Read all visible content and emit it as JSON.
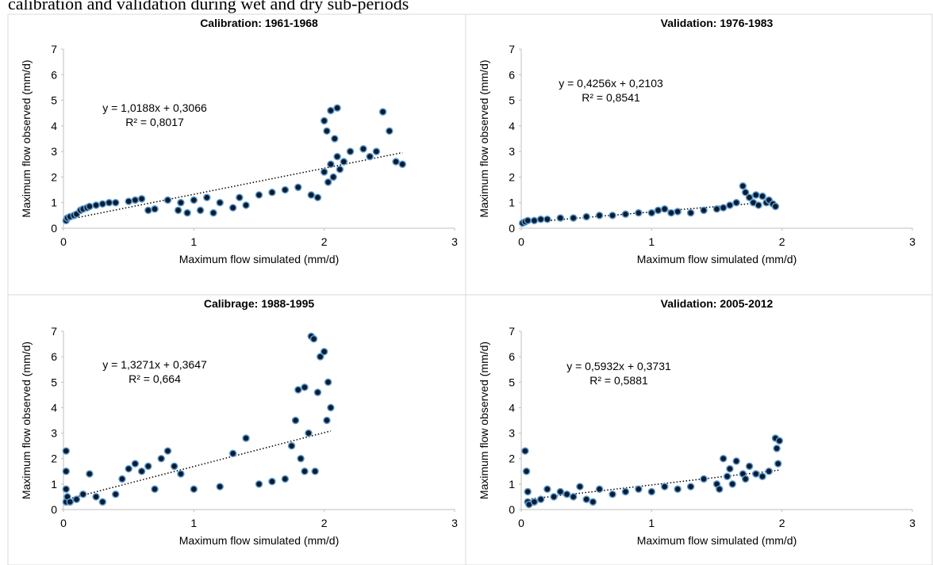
{
  "caption": "calibration and validation during wet and dry sub-periods",
  "chart_data": [
    {
      "type": "scatter",
      "title": "Calibration: 1961-1968",
      "x_label": "Maximum flow simulated (mm/d)",
      "y_label": "Maximum flow observed (mm/d)",
      "x": [
        0.02,
        0.03,
        0.05,
        0.08,
        0.1,
        0.13,
        0.15,
        0.18,
        0.2,
        0.25,
        0.3,
        0.35,
        0.4,
        0.5,
        0.55,
        0.6,
        0.65,
        0.7,
        0.8,
        0.88,
        0.9,
        0.95,
        1.0,
        1.05,
        1.1,
        1.15,
        1.2,
        1.3,
        1.35,
        1.4,
        1.5,
        1.6,
        1.7,
        1.8,
        1.9,
        1.95,
        2.0,
        2.0,
        2.02,
        2.03,
        2.05,
        2.05,
        2.07,
        2.08,
        2.1,
        2.1,
        2.12,
        2.15,
        2.2,
        2.3,
        2.35,
        2.4,
        2.45,
        2.5,
        2.55,
        2.6
      ],
      "y": [
        0.3,
        0.4,
        0.45,
        0.5,
        0.55,
        0.7,
        0.75,
        0.8,
        0.85,
        0.9,
        0.95,
        1.0,
        1.0,
        1.05,
        1.1,
        1.15,
        0.7,
        0.75,
        1.1,
        0.7,
        1.0,
        0.6,
        1.1,
        0.7,
        1.2,
        0.6,
        1.0,
        0.8,
        1.2,
        0.9,
        1.3,
        1.4,
        1.5,
        1.6,
        1.3,
        1.2,
        2.2,
        4.2,
        3.8,
        1.8,
        2.5,
        4.6,
        2.0,
        3.5,
        4.7,
        2.8,
        2.3,
        2.6,
        3.0,
        3.1,
        2.8,
        3.0,
        4.55,
        3.8,
        2.6,
        2.5
      ],
      "color": "#0d1b2a",
      "edge_color": "#5b9bd5",
      "xlim": [
        0,
        3
      ],
      "ylim": [
        0,
        7
      ],
      "xticks": [
        0,
        1,
        2,
        3
      ],
      "yticks": [
        0,
        1,
        2,
        3,
        4,
        5,
        6,
        7
      ],
      "trendline": {
        "slope": 1.0188,
        "intercept": 0.3066,
        "equation": "y = 1,0188x + 0,3066",
        "r_squared": "R² = 0,8017"
      }
    },
    {
      "type": "scatter",
      "title": "Validation: 1976-1983",
      "x_label": "Maximum flow simulated (mm/d)",
      "y_label": "Maximum flow observed (mm/d)",
      "x": [
        0.01,
        0.03,
        0.05,
        0.1,
        0.15,
        0.2,
        0.3,
        0.4,
        0.5,
        0.6,
        0.7,
        0.8,
        0.9,
        1.0,
        1.05,
        1.1,
        1.15,
        1.2,
        1.3,
        1.4,
        1.5,
        1.55,
        1.6,
        1.65,
        1.7,
        1.72,
        1.75,
        1.78,
        1.8,
        1.82,
        1.85,
        1.88,
        1.9,
        1.93,
        1.95
      ],
      "y": [
        0.2,
        0.25,
        0.3,
        0.3,
        0.35,
        0.35,
        0.4,
        0.4,
        0.45,
        0.5,
        0.5,
        0.55,
        0.6,
        0.6,
        0.7,
        0.75,
        0.6,
        0.65,
        0.6,
        0.7,
        0.75,
        0.8,
        0.9,
        1.0,
        1.65,
        1.4,
        1.2,
        1.0,
        1.3,
        0.9,
        1.25,
        1.0,
        1.1,
        0.95,
        0.85
      ],
      "color": "#0d1b2a",
      "edge_color": "#5b9bd5",
      "xlim": [
        0,
        3
      ],
      "ylim": [
        0,
        7
      ],
      "xticks": [
        0,
        1,
        2,
        3
      ],
      "yticks": [
        0,
        1,
        2,
        3,
        4,
        5,
        6,
        7
      ],
      "trendline": {
        "slope": 0.4256,
        "intercept": 0.2103,
        "equation": "y = 0,4256x + 0,2103",
        "r_squared": "R² = 0,8541"
      }
    },
    {
      "type": "scatter",
      "title": "Calibrage: 1988-1995",
      "x_label": "Maximum flow simulated (mm/d)",
      "y_label": "Maximum flow observed (mm/d)",
      "x": [
        0.02,
        0.02,
        0.02,
        0.02,
        0.03,
        0.05,
        0.1,
        0.15,
        0.2,
        0.25,
        0.3,
        0.4,
        0.45,
        0.5,
        0.55,
        0.6,
        0.65,
        0.7,
        0.75,
        0.8,
        0.85,
        0.9,
        1.0,
        1.2,
        1.3,
        1.4,
        1.5,
        1.6,
        1.7,
        1.75,
        1.78,
        1.8,
        1.82,
        1.85,
        1.85,
        1.88,
        1.9,
        1.92,
        1.93,
        1.95,
        1.97,
        2.0,
        2.02,
        2.03,
        2.05
      ],
      "y": [
        2.3,
        1.5,
        0.8,
        0.3,
        0.5,
        0.3,
        0.4,
        0.6,
        1.4,
        0.5,
        0.3,
        0.6,
        1.2,
        1.6,
        1.8,
        1.5,
        1.7,
        0.8,
        2.0,
        2.3,
        1.7,
        1.4,
        0.8,
        0.9,
        2.2,
        2.8,
        1.0,
        1.1,
        1.2,
        2.5,
        3.5,
        4.7,
        2.0,
        1.5,
        4.8,
        3.0,
        6.8,
        6.7,
        1.5,
        4.6,
        6.0,
        6.2,
        3.5,
        5.0,
        4.0
      ],
      "color": "#0d1b2a",
      "edge_color": "#5b9bd5",
      "xlim": [
        0,
        3
      ],
      "ylim": [
        0,
        7
      ],
      "xticks": [
        0,
        1,
        2,
        3
      ],
      "yticks": [
        0,
        1,
        2,
        3,
        4,
        5,
        6,
        7
      ],
      "trendline": {
        "slope": 1.3271,
        "intercept": 0.3647,
        "equation": "y = 1,3271x + 0,3647",
        "r_squared": "R² = 0,664"
      }
    },
    {
      "type": "scatter",
      "title": "Validation: 2005-2012",
      "x_label": "Maximum flow simulated (mm/d)",
      "y_label": "Maximum flow observed (mm/d)",
      "x": [
        0.03,
        0.04,
        0.05,
        0.05,
        0.06,
        0.1,
        0.15,
        0.2,
        0.25,
        0.3,
        0.35,
        0.4,
        0.45,
        0.5,
        0.55,
        0.6,
        0.7,
        0.8,
        0.9,
        1.0,
        1.1,
        1.2,
        1.3,
        1.4,
        1.5,
        1.52,
        1.55,
        1.58,
        1.6,
        1.62,
        1.65,
        1.7,
        1.72,
        1.75,
        1.8,
        1.85,
        1.9,
        1.95,
        1.96,
        1.97,
        1.98
      ],
      "y": [
        2.3,
        1.5,
        0.7,
        0.3,
        0.2,
        0.3,
        0.4,
        0.8,
        0.5,
        0.7,
        0.6,
        0.5,
        0.9,
        0.4,
        0.3,
        0.8,
        0.6,
        0.7,
        0.8,
        0.7,
        0.9,
        0.8,
        0.9,
        1.2,
        1.0,
        0.8,
        2.0,
        1.3,
        1.6,
        1.0,
        1.9,
        1.4,
        1.2,
        1.7,
        1.4,
        1.3,
        1.5,
        2.8,
        2.4,
        1.8,
        2.7
      ],
      "color": "#0d1b2a",
      "edge_color": "#5b9bd5",
      "xlim": [
        0,
        3
      ],
      "ylim": [
        0,
        7
      ],
      "xticks": [
        0,
        1,
        2,
        3
      ],
      "yticks": [
        0,
        1,
        2,
        3,
        4,
        5,
        6,
        7
      ],
      "trendline": {
        "slope": 0.5932,
        "intercept": 0.3731,
        "equation": "y = 0,5932x + 0,3731",
        "r_squared": "R² = 0,5881"
      }
    }
  ]
}
